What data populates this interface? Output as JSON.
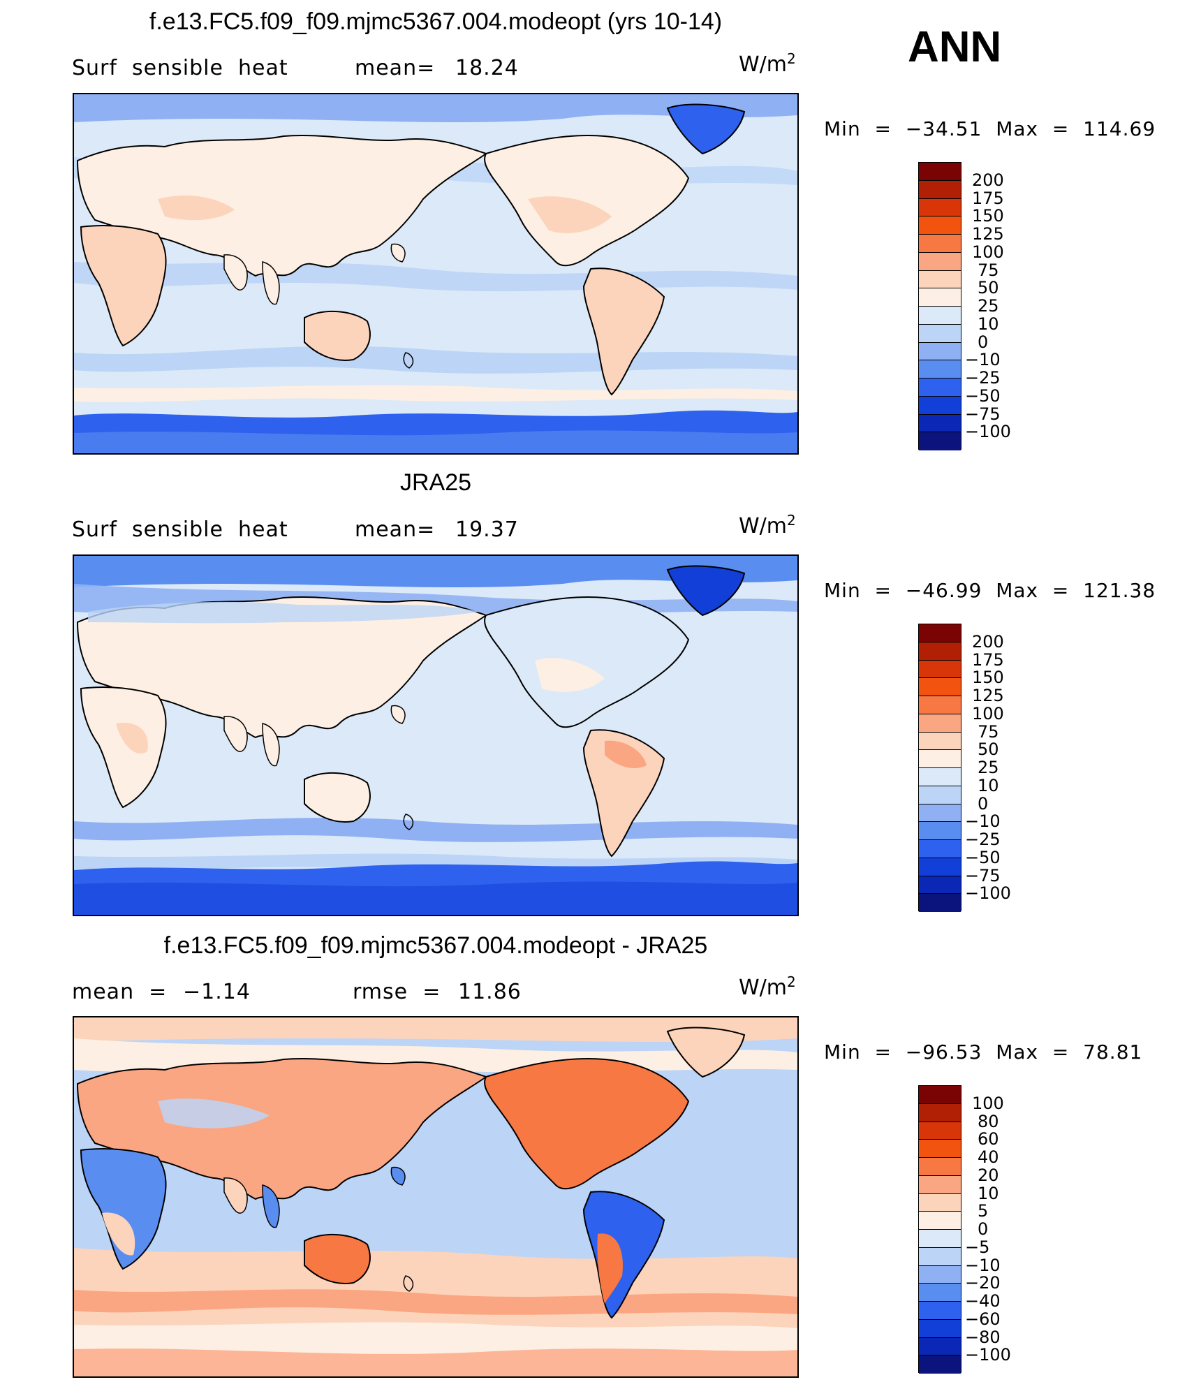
{
  "season": "ANN",
  "units_base": "W/m",
  "units_exp": "2",
  "panels": [
    {
      "title": "f.e13.FC5.f09_f09.mjmc5367.004.modeopt (yrs 10-14)",
      "left_label": "Surf  sensible  heat",
      "stat_label": "mean=",
      "stat_value": "18.24",
      "min_label": "Min  =",
      "min_value": "−34.51",
      "max_label": "Max  =",
      "max_value": "114.69",
      "palette": "absolute",
      "colorbar_levels": [
        "200",
        "175",
        "150",
        "125",
        "100",
        "75",
        "50",
        "25",
        "10",
        "0",
        "−10",
        "−25",
        "−50",
        "−75",
        "−100"
      ]
    },
    {
      "title": "JRA25",
      "left_label": "Surf  sensible  heat",
      "stat_label": "mean=",
      "stat_value": "19.37",
      "min_label": "Min  =",
      "min_value": "−46.99",
      "max_label": "Max  =",
      "max_value": "121.38",
      "palette": "absolute",
      "colorbar_levels": [
        "200",
        "175",
        "150",
        "125",
        "100",
        "75",
        "50",
        "25",
        "10",
        "0",
        "−10",
        "−25",
        "−50",
        "−75",
        "−100"
      ]
    },
    {
      "title": "f.e13.FC5.f09_f09.mjmc5367.004.modeopt - JRA25",
      "left_label": "mean  =",
      "left_value": "−1.14",
      "stat_label": "rmse  =",
      "stat_value": "11.86",
      "min_label": "Min  =",
      "min_value": "−96.53",
      "max_label": "Max  =",
      "max_value": "78.81",
      "palette": "difference",
      "colorbar_levels": [
        "100",
        "80",
        "60",
        "40",
        "20",
        "10",
        "5",
        "0",
        "−5",
        "−10",
        "−20",
        "−40",
        "−60",
        "−80",
        "−100"
      ]
    }
  ],
  "colors": {
    "absolute_bins": [
      "#7a0403",
      "#b11f05",
      "#d83608",
      "#f2540f",
      "#f87844",
      "#fba682",
      "#fcd4bc",
      "#fdefe3",
      "#dbe9f8",
      "#bcd4f6",
      "#8fb1f3",
      "#5a8df0",
      "#2e62ee",
      "#123fd8",
      "#0a27b5",
      "#0b137d"
    ],
    "difference_bins": [
      "#7a0403",
      "#b11f05",
      "#d83608",
      "#f2540f",
      "#f87844",
      "#fba682",
      "#fcd4bc",
      "#fdefe3",
      "#dbe9f8",
      "#bcd4f6",
      "#8fb1f3",
      "#5a8df0",
      "#2e62ee",
      "#123fd8",
      "#0a27b5",
      "#0b137d"
    ],
    "land_outline": "#000000"
  }
}
